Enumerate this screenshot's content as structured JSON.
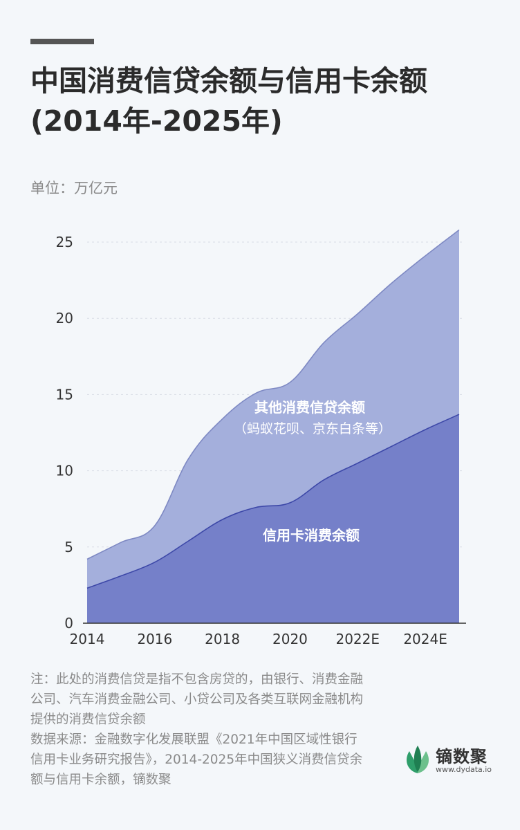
{
  "title_line1": "中国消费信贷余额与信用卡余额",
  "title_line2": "(2014年-2025年)",
  "unit_label": "单位：万亿元",
  "colors": {
    "background": "#f4f7fa",
    "other_area": "#a4afdc",
    "other_line": "#7e89c3",
    "card_area": "#7580c9",
    "card_line": "#3d48a8",
    "grid": "#d9dde6"
  },
  "chart_data": {
    "type": "area",
    "stacked": true,
    "x": [
      2014,
      2015,
      2016,
      2017,
      2018,
      2019,
      2020,
      2021,
      2022,
      2023,
      2024,
      2025
    ],
    "x_tick_values": [
      2014,
      2016,
      2018,
      2020,
      2022,
      2024
    ],
    "x_tick_labels": [
      "2014",
      "2016",
      "2018",
      "2020",
      "2022E",
      "2024E"
    ],
    "xlim": [
      2014,
      2025
    ],
    "ylim": [
      0,
      26
    ],
    "y_ticks": [
      0,
      5,
      10,
      15,
      20,
      25
    ],
    "grid": "horizontal dashed",
    "series": [
      {
        "name": "信用卡消费余额",
        "values": [
          2.3,
          3.1,
          4.0,
          5.4,
          6.8,
          7.6,
          7.9,
          9.4,
          10.5,
          11.6,
          12.7,
          13.7
        ]
      },
      {
        "name": "其他消费信贷余额",
        "name_sub": "（蚂蚁花呗、京东白条等）",
        "values": [
          1.9,
          2.2,
          2.4,
          5.4,
          6.6,
          7.5,
          7.9,
          9.0,
          9.8,
          10.7,
          11.4,
          12.1
        ]
      }
    ]
  },
  "notes": {
    "note": "注：此处的消费信贷是指不包含房贷的，由银行、消费金融公司、汽车消费金融公司、小贷公司及各类互联网金融机构提供的消费信贷余额",
    "source": "数据来源：金融数字化发展联盟《2021年中国区域性银行信用卡业务研究报告》，2014-2025年中国狭义消费信贷余额与信用卡余额，镝数聚"
  },
  "logo": {
    "name": "镝数聚",
    "url": "www.dydata.io",
    "icon": "leaf-logo-icon"
  }
}
